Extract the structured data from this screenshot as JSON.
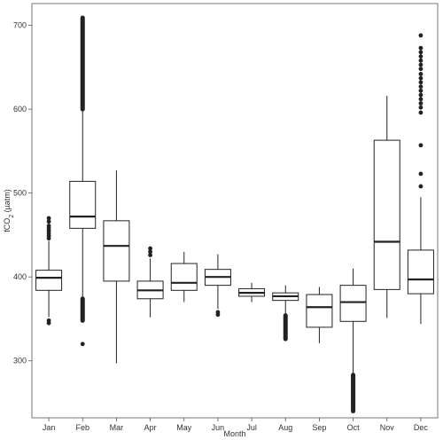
{
  "chart_data": {
    "type": "boxplot",
    "xlabel": "Month",
    "ylabel": {
      "main": "fCO",
      "sub": "2",
      "tail": " (µatm)"
    },
    "ylim": [
      232,
      726
    ],
    "yticks": [
      300,
      400,
      500,
      600,
      700
    ],
    "categories": [
      "Jan",
      "Feb",
      "Mar",
      "Apr",
      "May",
      "Jun",
      "Jul",
      "Aug",
      "Sep",
      "Oct",
      "Nov",
      "Dec"
    ],
    "boxes": [
      {
        "q1": 384,
        "median": 399,
        "q3": 408,
        "whisker_low": 352,
        "whisker_high": 443,
        "outliers_low": [
          345,
          348
        ],
        "outliers_high": [
          446,
          449,
          452,
          455,
          458,
          461,
          466,
          470
        ],
        "outlier_band_low": null,
        "outlier_band_high": null
      },
      {
        "q1": 458,
        "median": 472,
        "q3": 514,
        "whisker_low": 375,
        "whisker_high": 598,
        "outliers_low": [
          320
        ],
        "outliers_high": [],
        "outlier_band_low": [
          348,
          374
        ],
        "outlier_band_high": [
          600,
          709
        ]
      },
      {
        "q1": 395,
        "median": 437,
        "q3": 467,
        "whisker_low": 297,
        "whisker_high": 527,
        "outliers_low": [],
        "outliers_high": [],
        "outlier_band_low": null,
        "outlier_band_high": null
      },
      {
        "q1": 374,
        "median": 384,
        "q3": 395,
        "whisker_low": 352,
        "whisker_high": 422,
        "outliers_low": [],
        "outliers_high": [
          426,
          430,
          434
        ],
        "outlier_band_low": null,
        "outlier_band_high": null
      },
      {
        "q1": 384,
        "median": 393,
        "q3": 416,
        "whisker_low": 370,
        "whisker_high": 430,
        "outliers_low": [],
        "outliers_high": [],
        "outlier_band_low": null,
        "outlier_band_high": null
      },
      {
        "q1": 390,
        "median": 400,
        "q3": 409,
        "whisker_low": 362,
        "whisker_high": 427,
        "outliers_low": [
          355,
          358
        ],
        "outliers_high": [],
        "outlier_band_low": null,
        "outlier_band_high": null
      },
      {
        "q1": 377,
        "median": 381,
        "q3": 386,
        "whisker_low": 370,
        "whisker_high": 393,
        "outliers_low": [],
        "outliers_high": [],
        "outlier_band_low": null,
        "outlier_band_high": null
      },
      {
        "q1": 372,
        "median": 377,
        "q3": 381,
        "whisker_low": 356,
        "whisker_high": 390,
        "outliers_low": [],
        "outliers_high": [],
        "outlier_band_low": [
          326,
          354
        ],
        "outlier_band_high": null
      },
      {
        "q1": 340,
        "median": 364,
        "q3": 379,
        "whisker_low": 321,
        "whisker_high": 388,
        "outliers_low": [],
        "outliers_high": [],
        "outlier_band_low": null,
        "outlier_band_high": null
      },
      {
        "q1": 347,
        "median": 370,
        "q3": 390,
        "whisker_low": 285,
        "whisker_high": 410,
        "outliers_low": [],
        "outliers_high": [],
        "outlier_band_low": [
          240,
          283
        ],
        "outlier_band_high": null
      },
      {
        "q1": 385,
        "median": 442,
        "q3": 563,
        "whisker_low": 351,
        "whisker_high": 616,
        "outliers_low": [],
        "outliers_high": [],
        "outlier_band_low": null,
        "outlier_band_high": null
      },
      {
        "q1": 380,
        "median": 397,
        "q3": 432,
        "whisker_low": 344,
        "whisker_high": 495,
        "outliers_low": [],
        "outliers_high": [
          508,
          523,
          557,
          596,
          602,
          607,
          612,
          617,
          622,
          627,
          632,
          637,
          642,
          648,
          653,
          658,
          663,
          668,
          673,
          688
        ],
        "outlier_band_low": null,
        "outlier_band_high": null
      }
    ]
  },
  "colors": {
    "frame": "#555555",
    "line": "#222222",
    "text": "#333333",
    "background": "#ffffff"
  }
}
